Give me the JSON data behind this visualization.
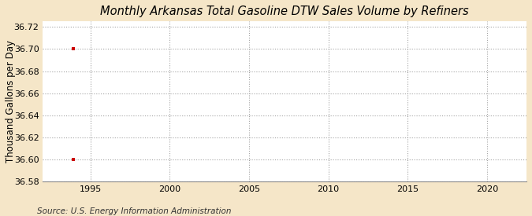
{
  "title": "Monthly Arkansas Total Gasoline DTW Sales Volume by Refiners",
  "ylabel": "Thousand Gallons per Day",
  "source": "Source: U.S. Energy Information Administration",
  "figure_facecolor": "#f5e6c8",
  "plot_facecolor": "#ffffff",
  "data_points_x": [
    1993.92,
    1993.92
  ],
  "data_points_y": [
    36.7,
    36.6
  ],
  "marker_color": "#cc0000",
  "marker": "s",
  "marker_size": 3.5,
  "xlim": [
    1992.0,
    2022.5
  ],
  "ylim": [
    36.58,
    36.725
  ],
  "xticks": [
    1995,
    2000,
    2005,
    2010,
    2015,
    2020
  ],
  "yticks": [
    36.58,
    36.6,
    36.62,
    36.64,
    36.66,
    36.68,
    36.7,
    36.72
  ],
  "grid_color": "#999999",
  "grid_style": ":",
  "title_fontsize": 10.5,
  "axis_fontsize": 8.5,
  "tick_fontsize": 8,
  "source_fontsize": 7.5
}
